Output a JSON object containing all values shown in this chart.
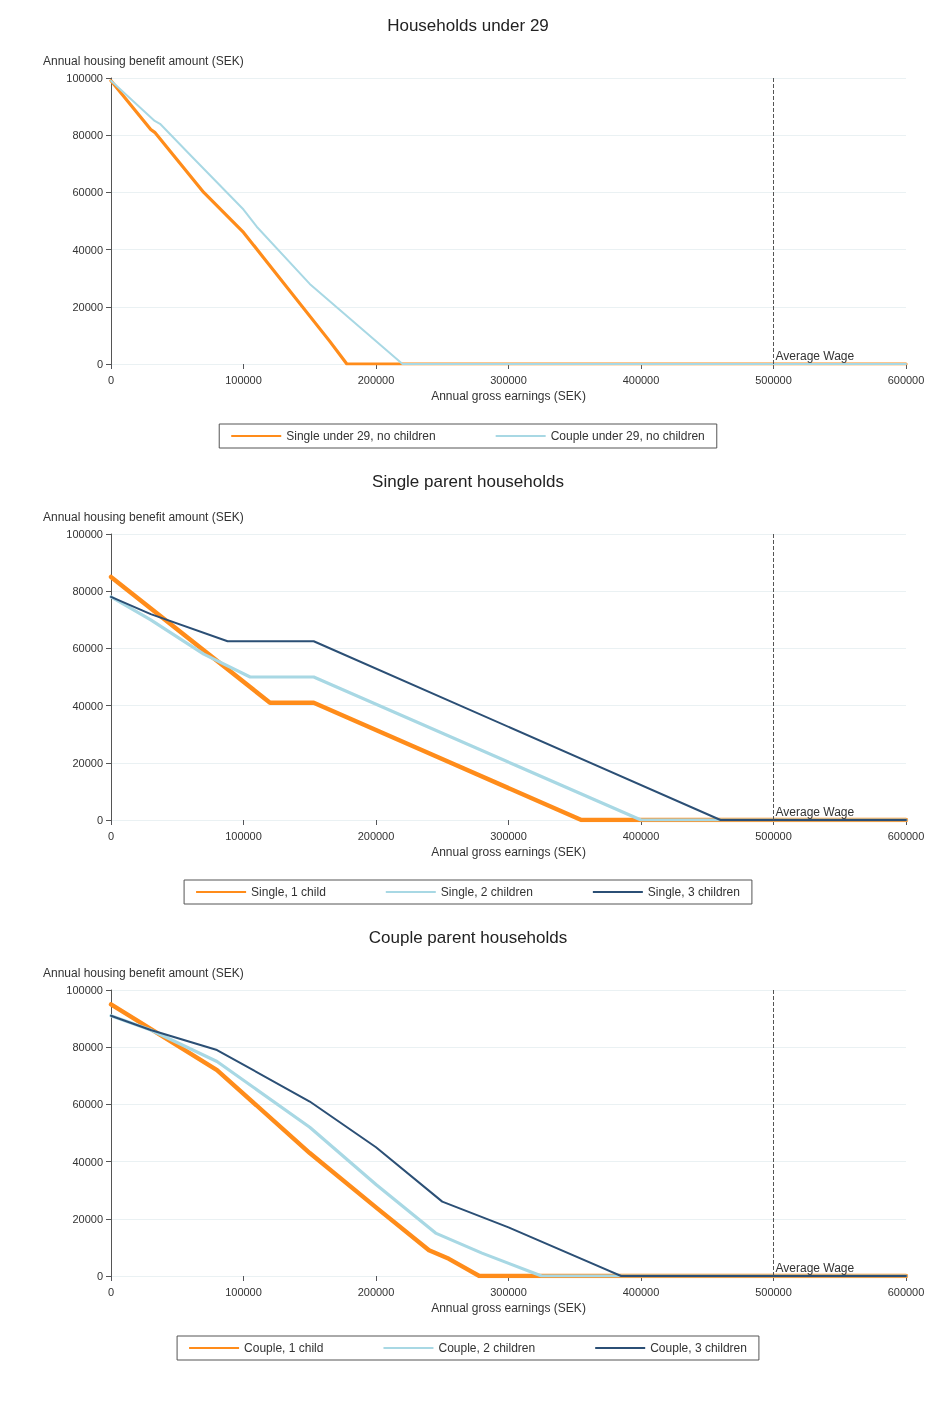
{
  "chart_data": [
    {
      "type": "line",
      "title": "Households under 29",
      "xlabel": "Annual gross earnings (SEK)",
      "ylabel": "Annual housing benefit amount (SEK)",
      "xlim": [
        0,
        600000
      ],
      "xticks": [
        0,
        100000,
        200000,
        300000,
        400000,
        500000,
        600000
      ],
      "ylim": [
        0,
        100000
      ],
      "yticks": [
        0,
        20000,
        40000,
        60000,
        80000,
        100000
      ],
      "grid": "y",
      "legend": "bottom",
      "marker": "none",
      "line_style": "solid",
      "ref_lines": [
        {
          "axis": "x",
          "value": 500000,
          "label": "Average Wage",
          "color": "#555555",
          "line_style": "dashed"
        }
      ],
      "series": [
        {
          "name": "Single under 29, no children",
          "color": "#ff8c1a",
          "x": [
            0,
            30000,
            33000,
            70000,
            100000,
            165000,
            178000,
            600000
          ],
          "values": [
            99000,
            82000,
            81000,
            60000,
            46000,
            8000,
            0,
            0
          ]
        },
        {
          "name": "Couple under 29, no children",
          "color": "#a8d8e4",
          "x": [
            0,
            33000,
            37000,
            60000,
            100000,
            110000,
            150000,
            220000,
            600000
          ],
          "values": [
            99000,
            85000,
            84000,
            73000,
            54000,
            48000,
            28000,
            0,
            0
          ]
        }
      ]
    },
    {
      "type": "line",
      "title": "Single parent households",
      "xlabel": "Annual gross earnings (SEK)",
      "ylabel": "Annual housing benefit amount (SEK)",
      "xlim": [
        0,
        600000
      ],
      "xticks": [
        0,
        100000,
        200000,
        300000,
        400000,
        500000,
        600000
      ],
      "ylim": [
        0,
        100000
      ],
      "yticks": [
        0,
        20000,
        40000,
        60000,
        80000,
        100000
      ],
      "grid": "y",
      "legend": "bottom",
      "marker": "none",
      "line_style": "solid",
      "ref_lines": [
        {
          "axis": "x",
          "value": 500000,
          "label": "Average Wage",
          "color": "#555555",
          "line_style": "dashed"
        }
      ],
      "series": [
        {
          "name": "Single, 1 child",
          "color": "#ff8c1a",
          "x": [
            0,
            120000,
            153000,
            355000,
            600000
          ],
          "values": [
            85000,
            41000,
            41000,
            0,
            0
          ]
        },
        {
          "name": "Single, 2 children",
          "color": "#a8d8e4",
          "x": [
            0,
            30000,
            70000,
            105000,
            153000,
            400000,
            600000
          ],
          "values": [
            78000,
            70000,
            58000,
            50000,
            50000,
            0,
            0
          ]
        },
        {
          "name": "Single, 3 children",
          "color": "#2b4f75",
          "x": [
            0,
            30000,
            88000,
            153000,
            460000,
            600000
          ],
          "values": [
            78000,
            72000,
            62500,
            62500,
            0,
            0
          ]
        }
      ]
    },
    {
      "type": "line",
      "title": "Couple parent households",
      "xlabel": "Annual gross earnings (SEK)",
      "ylabel": "Annual housing benefit amount (SEK)",
      "xlim": [
        0,
        600000
      ],
      "xticks": [
        0,
        100000,
        200000,
        300000,
        400000,
        500000,
        600000
      ],
      "ylim": [
        0,
        100000
      ],
      "yticks": [
        0,
        20000,
        40000,
        60000,
        80000,
        100000
      ],
      "grid": "y",
      "legend": "bottom",
      "marker": "none",
      "line_style": "solid",
      "ref_lines": [
        {
          "axis": "x",
          "value": 500000,
          "label": "Average Wage",
          "color": "#555555",
          "line_style": "dashed"
        }
      ],
      "series": [
        {
          "name": "Couple, 1 child",
          "color": "#ff8c1a",
          "x": [
            0,
            80000,
            150000,
            200000,
            240000,
            255000,
            278000,
            600000
          ],
          "values": [
            95000,
            72000,
            43000,
            24000,
            9000,
            6000,
            0,
            0
          ]
        },
        {
          "name": "Couple, 2 children",
          "color": "#a8d8e4",
          "x": [
            0,
            30000,
            80000,
            150000,
            200000,
            245000,
            280000,
            325000,
            600000
          ],
          "values": [
            91000,
            86000,
            75000,
            52000,
            32000,
            15000,
            8000,
            0,
            0
          ]
        },
        {
          "name": "Couple, 3 children",
          "color": "#2b4f75",
          "x": [
            0,
            30000,
            80000,
            150000,
            200000,
            250000,
            300000,
            385000,
            600000
          ],
          "values": [
            91000,
            86000,
            79000,
            61000,
            45000,
            26000,
            17000,
            0,
            0
          ]
        }
      ]
    }
  ]
}
